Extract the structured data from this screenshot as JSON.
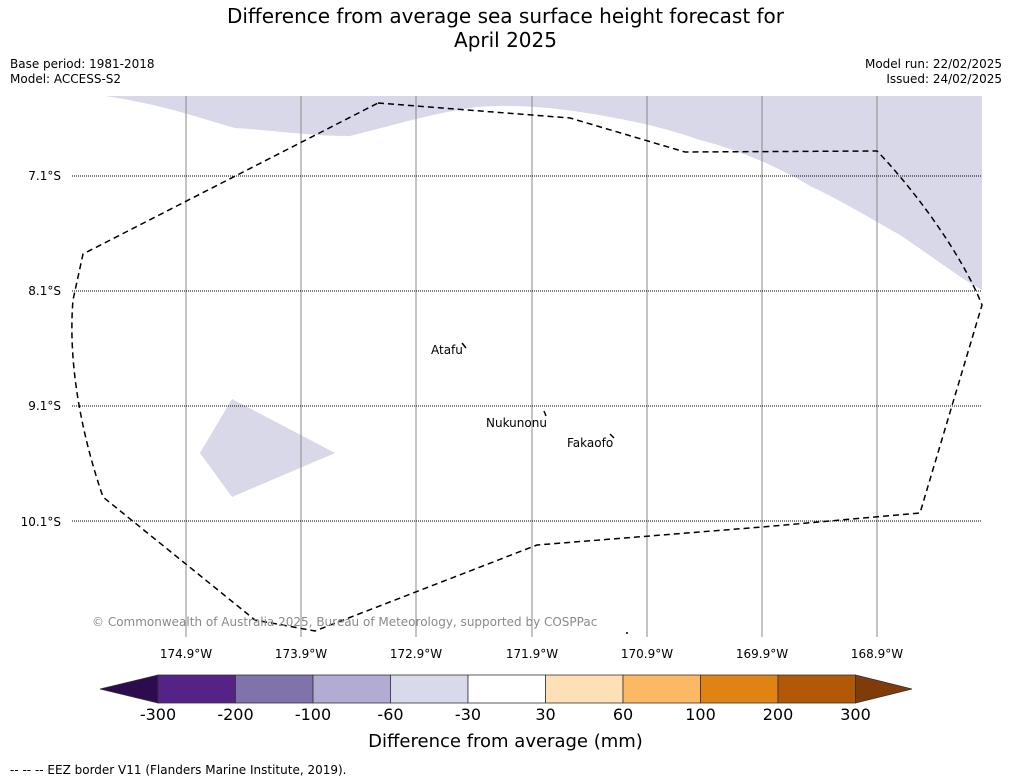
{
  "title": {
    "line1": "Difference from average sea surface height forecast for",
    "line2": "April 2025"
  },
  "meta": {
    "base_period": "Base period: 1981-2018",
    "model": "Model: ACCESS-S2",
    "model_run": "Model run: 22/02/2025",
    "issued": "Issued: 24/02/2025"
  },
  "map": {
    "latitudes": [
      "7.1°S",
      "8.1°S",
      "9.1°S",
      "10.1°S"
    ],
    "longitudes": [
      "174.9°W",
      "173.9°W",
      "172.9°W",
      "171.9°W",
      "170.9°W",
      "169.9°W",
      "168.9°W"
    ],
    "places": [
      "Atafu",
      "Nukunonu",
      "Fakaofo"
    ],
    "copyright": "© Commonwealth of Australia 2025, Bureau of Meteorology, supported by COSPPac",
    "anomaly_fill_color": "#d8d8e8",
    "eez_line_style": "dashed black"
  },
  "colorbar": {
    "ticks": [
      "-300",
      "-200",
      "-100",
      "-60",
      "-30",
      "30",
      "60",
      "100",
      "200",
      "300"
    ],
    "colors": [
      "#2d0b4f",
      "#552288",
      "#8073ac",
      "#b2abd2",
      "#d8daeb",
      "#ffffff",
      "#fee0b6",
      "#fdb863",
      "#e08214",
      "#b35806",
      "#7f3b08"
    ],
    "label": "Difference from average (mm)"
  },
  "footnote": "--  --  -- EEZ border V11 (Flanders Marine Institute, 2019)."
}
